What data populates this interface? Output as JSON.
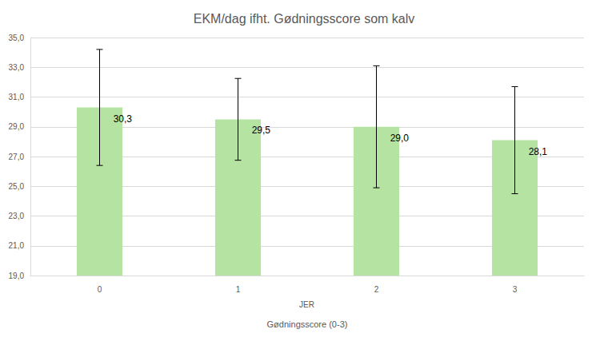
{
  "chart_data": {
    "type": "bar",
    "title": "EKM/dag ifht. Gødningsscore som kalv",
    "categories": [
      "0",
      "1",
      "2",
      "3"
    ],
    "values": [
      30.3,
      29.5,
      29.0,
      28.1
    ],
    "value_labels": [
      "30,3",
      "29,5",
      "29,0",
      "28,1"
    ],
    "errors": [
      3.9,
      2.75,
      4.1,
      3.6
    ],
    "color": "#b4e3a2",
    "group_label": "JER",
    "xlabel": "Gødningsscore (0-3)",
    "ylim": [
      19,
      35
    ],
    "yticks": [
      {
        "value": 19,
        "label": "19,0"
      },
      {
        "value": 21,
        "label": "21,0"
      },
      {
        "value": 23,
        "label": "23,0"
      },
      {
        "value": 25,
        "label": "25,0"
      },
      {
        "value": 27,
        "label": "27,0"
      },
      {
        "value": 29,
        "label": "29,0"
      },
      {
        "value": 31,
        "label": "31,0"
      },
      {
        "value": 33,
        "label": "33,0"
      },
      {
        "value": 35,
        "label": "35,0"
      }
    ],
    "grid": true,
    "data_labels": true
  }
}
